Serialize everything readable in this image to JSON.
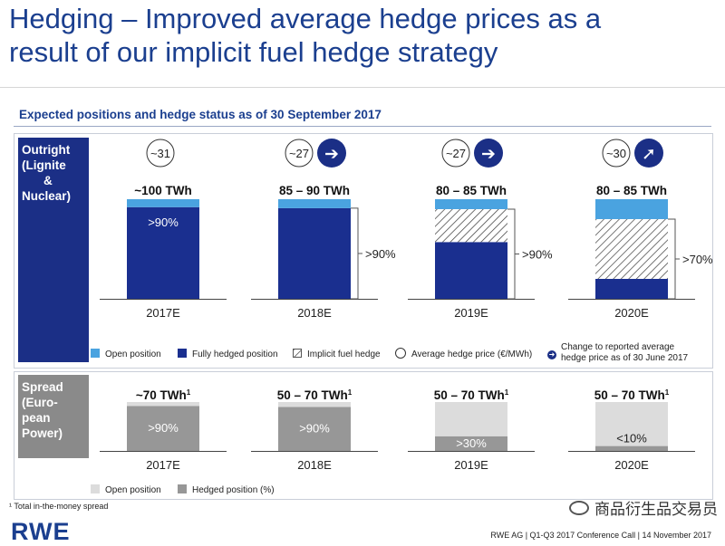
{
  "title": {
    "line1": "Hedging – Improved average hedge prices as a",
    "line2": "result of our implicit fuel hedge strategy"
  },
  "subtitle": "Expected positions and hedge status as of 30 September 2017",
  "colors": {
    "open": "#4aa3e0",
    "hedged": "#1a2f8f",
    "brand": "#1b3f8f",
    "spread_open": "#dcdcdc",
    "spread_hedged": "#979797",
    "leftbox_outright": "#1b2f86",
    "leftbox_spread": "#8a8a8a"
  },
  "outright": {
    "label": "Outright (Lignite & Nuclear)",
    "label_lines": [
      "Outright",
      "(Lignite",
      "&",
      "Nuclear)"
    ]
  },
  "spread": {
    "label": "Spread (European Power)",
    "label_lines": [
      "Spread",
      "(Euro-",
      "pean",
      "Power)"
    ]
  },
  "chart_data": [
    {
      "type": "bar",
      "title": "Outright (Lignite & Nuclear)",
      "categories": [
        "2017E",
        "2018E",
        "2019E",
        "2020E"
      ],
      "volume_labels": [
        "~100 TWh",
        "85 – 90 TWh",
        "80 – 85 TWh",
        "80 – 85 TWh"
      ],
      "avg_hedge_price": [
        "~31",
        "~27",
        "~27",
        "~30"
      ],
      "price_change_icon": [
        null,
        "arrow-right",
        "arrow-right",
        "arrow-up-right"
      ],
      "hedge_labels": [
        ">90%",
        ">90%",
        ">90%",
        ">70%"
      ],
      "series": [
        {
          "name": "Fully hedged position",
          "values": [
            92,
            91,
            57,
            20
          ]
        },
        {
          "name": "Implicit fuel hedge",
          "values": [
            0,
            0,
            33,
            60
          ]
        },
        {
          "name": "Open position",
          "values": [
            8,
            9,
            10,
            20
          ]
        }
      ],
      "unit": "% of volume"
    },
    {
      "type": "bar",
      "title": "Spread (European Power)",
      "categories": [
        "2017E",
        "2018E",
        "2019E",
        "2020E"
      ],
      "volume_labels": [
        "~70 TWh",
        "50 – 70 TWh",
        "50 – 70 TWh",
        "50 – 70 TWh"
      ],
      "volume_footnote": "1",
      "hedge_labels": [
        ">90%",
        ">90%",
        ">30%",
        "<10%"
      ],
      "series": [
        {
          "name": "Hedged position (%)",
          "values": [
            92,
            90,
            30,
            10
          ]
        },
        {
          "name": "Open position",
          "values": [
            8,
            10,
            70,
            90
          ]
        }
      ],
      "unit": "% of volume"
    }
  ],
  "legend_outright": {
    "open": "Open position",
    "hedged": "Fully hedged position",
    "implicit": "Implicit fuel hedge",
    "avg_price": "Average hedge price (€/MWh)",
    "change_line1": "Change to reported average",
    "change_line2": "hedge price as of 30 June 2017"
  },
  "legend_spread": {
    "open": "Open position",
    "hedged": "Hedged position (%)"
  },
  "footnote": "¹ Total in-the-money spread",
  "footer": "RWE AG | Q1-Q3 2017 Conference Call | 14 November 2017",
  "logo": "RWE",
  "watermark": "商品衍生品交易员"
}
